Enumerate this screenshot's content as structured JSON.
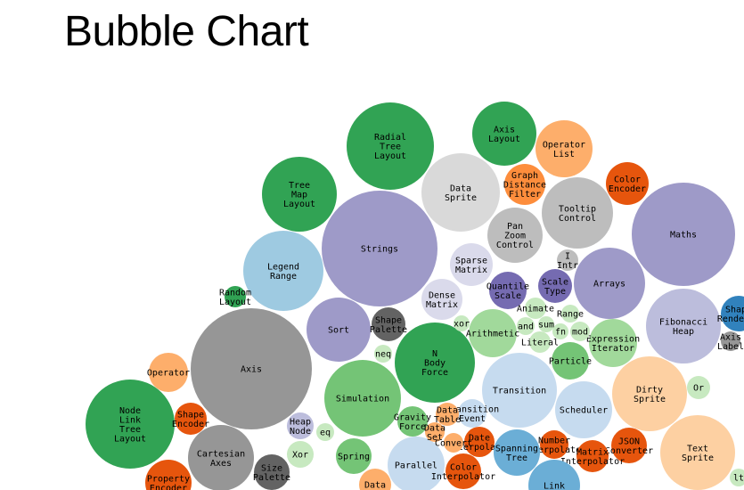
{
  "page": {
    "title": "Bubble Chart"
  },
  "chart_data": {
    "type": "bubble",
    "title": "Bubble Chart",
    "palette": {
      "dark_green": "#31a354",
      "mid_green": "#74c476",
      "light_green": "#a1d99b",
      "pale_green": "#c7e9c0",
      "dark_purple": "#756bb1",
      "mid_purple": "#9e9ac8",
      "light_purple": "#bcbddc",
      "pale_purple": "#dadaeb",
      "dark_gray": "#636363",
      "mid_gray": "#969696",
      "light_gray": "#bdbdbd",
      "pale_gray": "#d9d9d9",
      "dark_blue": "#3182bd",
      "mid_blue": "#6baed6",
      "light_blue": "#9ecae1",
      "pale_blue": "#c6dbef",
      "dark_orange": "#e6550d",
      "mid_orange": "#fd8d3c",
      "light_orange": "#fdae6b",
      "pale_orange": "#fdd0a2"
    },
    "bubbles": [
      {
        "label": "Radial Tree Layout",
        "color": "#31a354"
      },
      {
        "label": "Axis Layout",
        "color": "#31a354"
      },
      {
        "label": "Operator List",
        "color": "#fdae6b"
      },
      {
        "label": "Data Sprite",
        "color": "#d9d9d9"
      },
      {
        "label": "Graph Distance Filter",
        "color": "#fd8d3c"
      },
      {
        "label": "Color Encoder",
        "color": "#e6550d"
      },
      {
        "label": "Tree Map Layout",
        "color": "#31a354"
      },
      {
        "label": "Tooltip Control",
        "color": "#bdbdbd"
      },
      {
        "label": "Maths",
        "color": "#9e9ac8"
      },
      {
        "label": "Strings",
        "color": "#9e9ac8"
      },
      {
        "label": "Pan Zoom Control",
        "color": "#bdbdbd"
      },
      {
        "label": "Legend Range",
        "color": "#9ecae1"
      },
      {
        "label": "Sparse Matrix",
        "color": "#dadaeb"
      },
      {
        "label": "I Intr",
        "color": "#bdbdbd"
      },
      {
        "label": "Arrays",
        "color": "#9e9ac8"
      },
      {
        "label": "Quantile Scale",
        "color": "#756bb1"
      },
      {
        "label": "Scale Type",
        "color": "#756bb1"
      },
      {
        "label": "Random Layout",
        "color": "#31a354"
      },
      {
        "label": "Dense Matrix",
        "color": "#dadaeb"
      },
      {
        "label": "Sort",
        "color": "#9e9ac8"
      },
      {
        "label": "Shape Palette",
        "color": "#636363"
      },
      {
        "label": "Fibonacci Heap",
        "color": "#bcbddc"
      },
      {
        "label": "Shape Renderer",
        "color": "#3182bd"
      },
      {
        "label": "Axis",
        "color": "#969696"
      },
      {
        "label": "N Body Force",
        "color": "#31a354"
      },
      {
        "label": "Arithmetic",
        "color": "#a1d99b"
      },
      {
        "label": "Expression Iterator",
        "color": "#a1d99b"
      },
      {
        "label": "Operator",
        "color": "#fdae6b"
      },
      {
        "label": "Particle",
        "color": "#74c476"
      },
      {
        "label": "Dirty Sprite",
        "color": "#fdd0a2"
      },
      {
        "label": "Transition",
        "color": "#c6dbef"
      },
      {
        "label": "Or",
        "color": "#c7e9c0"
      },
      {
        "label": "Simulation",
        "color": "#74c476"
      },
      {
        "label": "Node Link Tree Layout",
        "color": "#31a354"
      },
      {
        "label": "Scheduler",
        "color": "#c6dbef"
      },
      {
        "label": "Shape Encoder",
        "color": "#e6550d"
      },
      {
        "label": "Heap Node",
        "color": "#bcbddc"
      },
      {
        "label": "Gravity Force",
        "color": "#74c476"
      },
      {
        "label": "Transition Event",
        "color": "#c6dbef"
      },
      {
        "label": "Cartesian Axes",
        "color": "#969696"
      },
      {
        "label": "Date Interpolator",
        "color": "#e6550d"
      },
      {
        "label": "Number Interpolator",
        "color": "#e6550d"
      },
      {
        "label": "JSON Converter",
        "color": "#e6550d"
      },
      {
        "label": "Text Sprite",
        "color": "#fdd0a2"
      },
      {
        "label": "Spanning Tree",
        "color": "#6baed6"
      },
      {
        "label": "Xor",
        "color": "#c7e9c0"
      },
      {
        "label": "Spring",
        "color": "#74c476"
      },
      {
        "label": "Parallel",
        "color": "#c6dbef"
      },
      {
        "label": "Matrix Interpolator",
        "color": "#e6550d"
      },
      {
        "label": "Size Palette",
        "color": "#636363"
      },
      {
        "label": "Color Interpolator",
        "color": "#e6550d"
      },
      {
        "label": "Property Encoder",
        "color": "#e6550d"
      },
      {
        "label": "Link",
        "color": "#6baed6"
      },
      {
        "label": "Data",
        "color": "#fdae6b"
      },
      {
        "label": "Data Table",
        "color": "#fdae6b"
      },
      {
        "label": "Data Set",
        "color": "#fdae6b"
      },
      {
        "label": "Convert",
        "color": "#fdae6b"
      },
      {
        "label": "Axis Label",
        "color": "#969696"
      },
      {
        "label": "Animate",
        "color": "#c7e9c0"
      },
      {
        "label": "and",
        "color": "#c7e9c0"
      },
      {
        "label": "sum",
        "color": "#c7e9c0"
      },
      {
        "label": "fn",
        "color": "#c7e9c0"
      },
      {
        "label": "mod",
        "color": "#c7e9c0"
      },
      {
        "label": "Literal",
        "color": "#c7e9c0"
      },
      {
        "label": "Range",
        "color": "#c7e9c0"
      },
      {
        "label": "neq",
        "color": "#c7e9c0"
      },
      {
        "label": "xor",
        "color": "#c7e9c0"
      },
      {
        "label": "lt",
        "color": "#c7e9c0"
      },
      {
        "label": "eq",
        "color": "#c7e9c0"
      }
    ]
  }
}
